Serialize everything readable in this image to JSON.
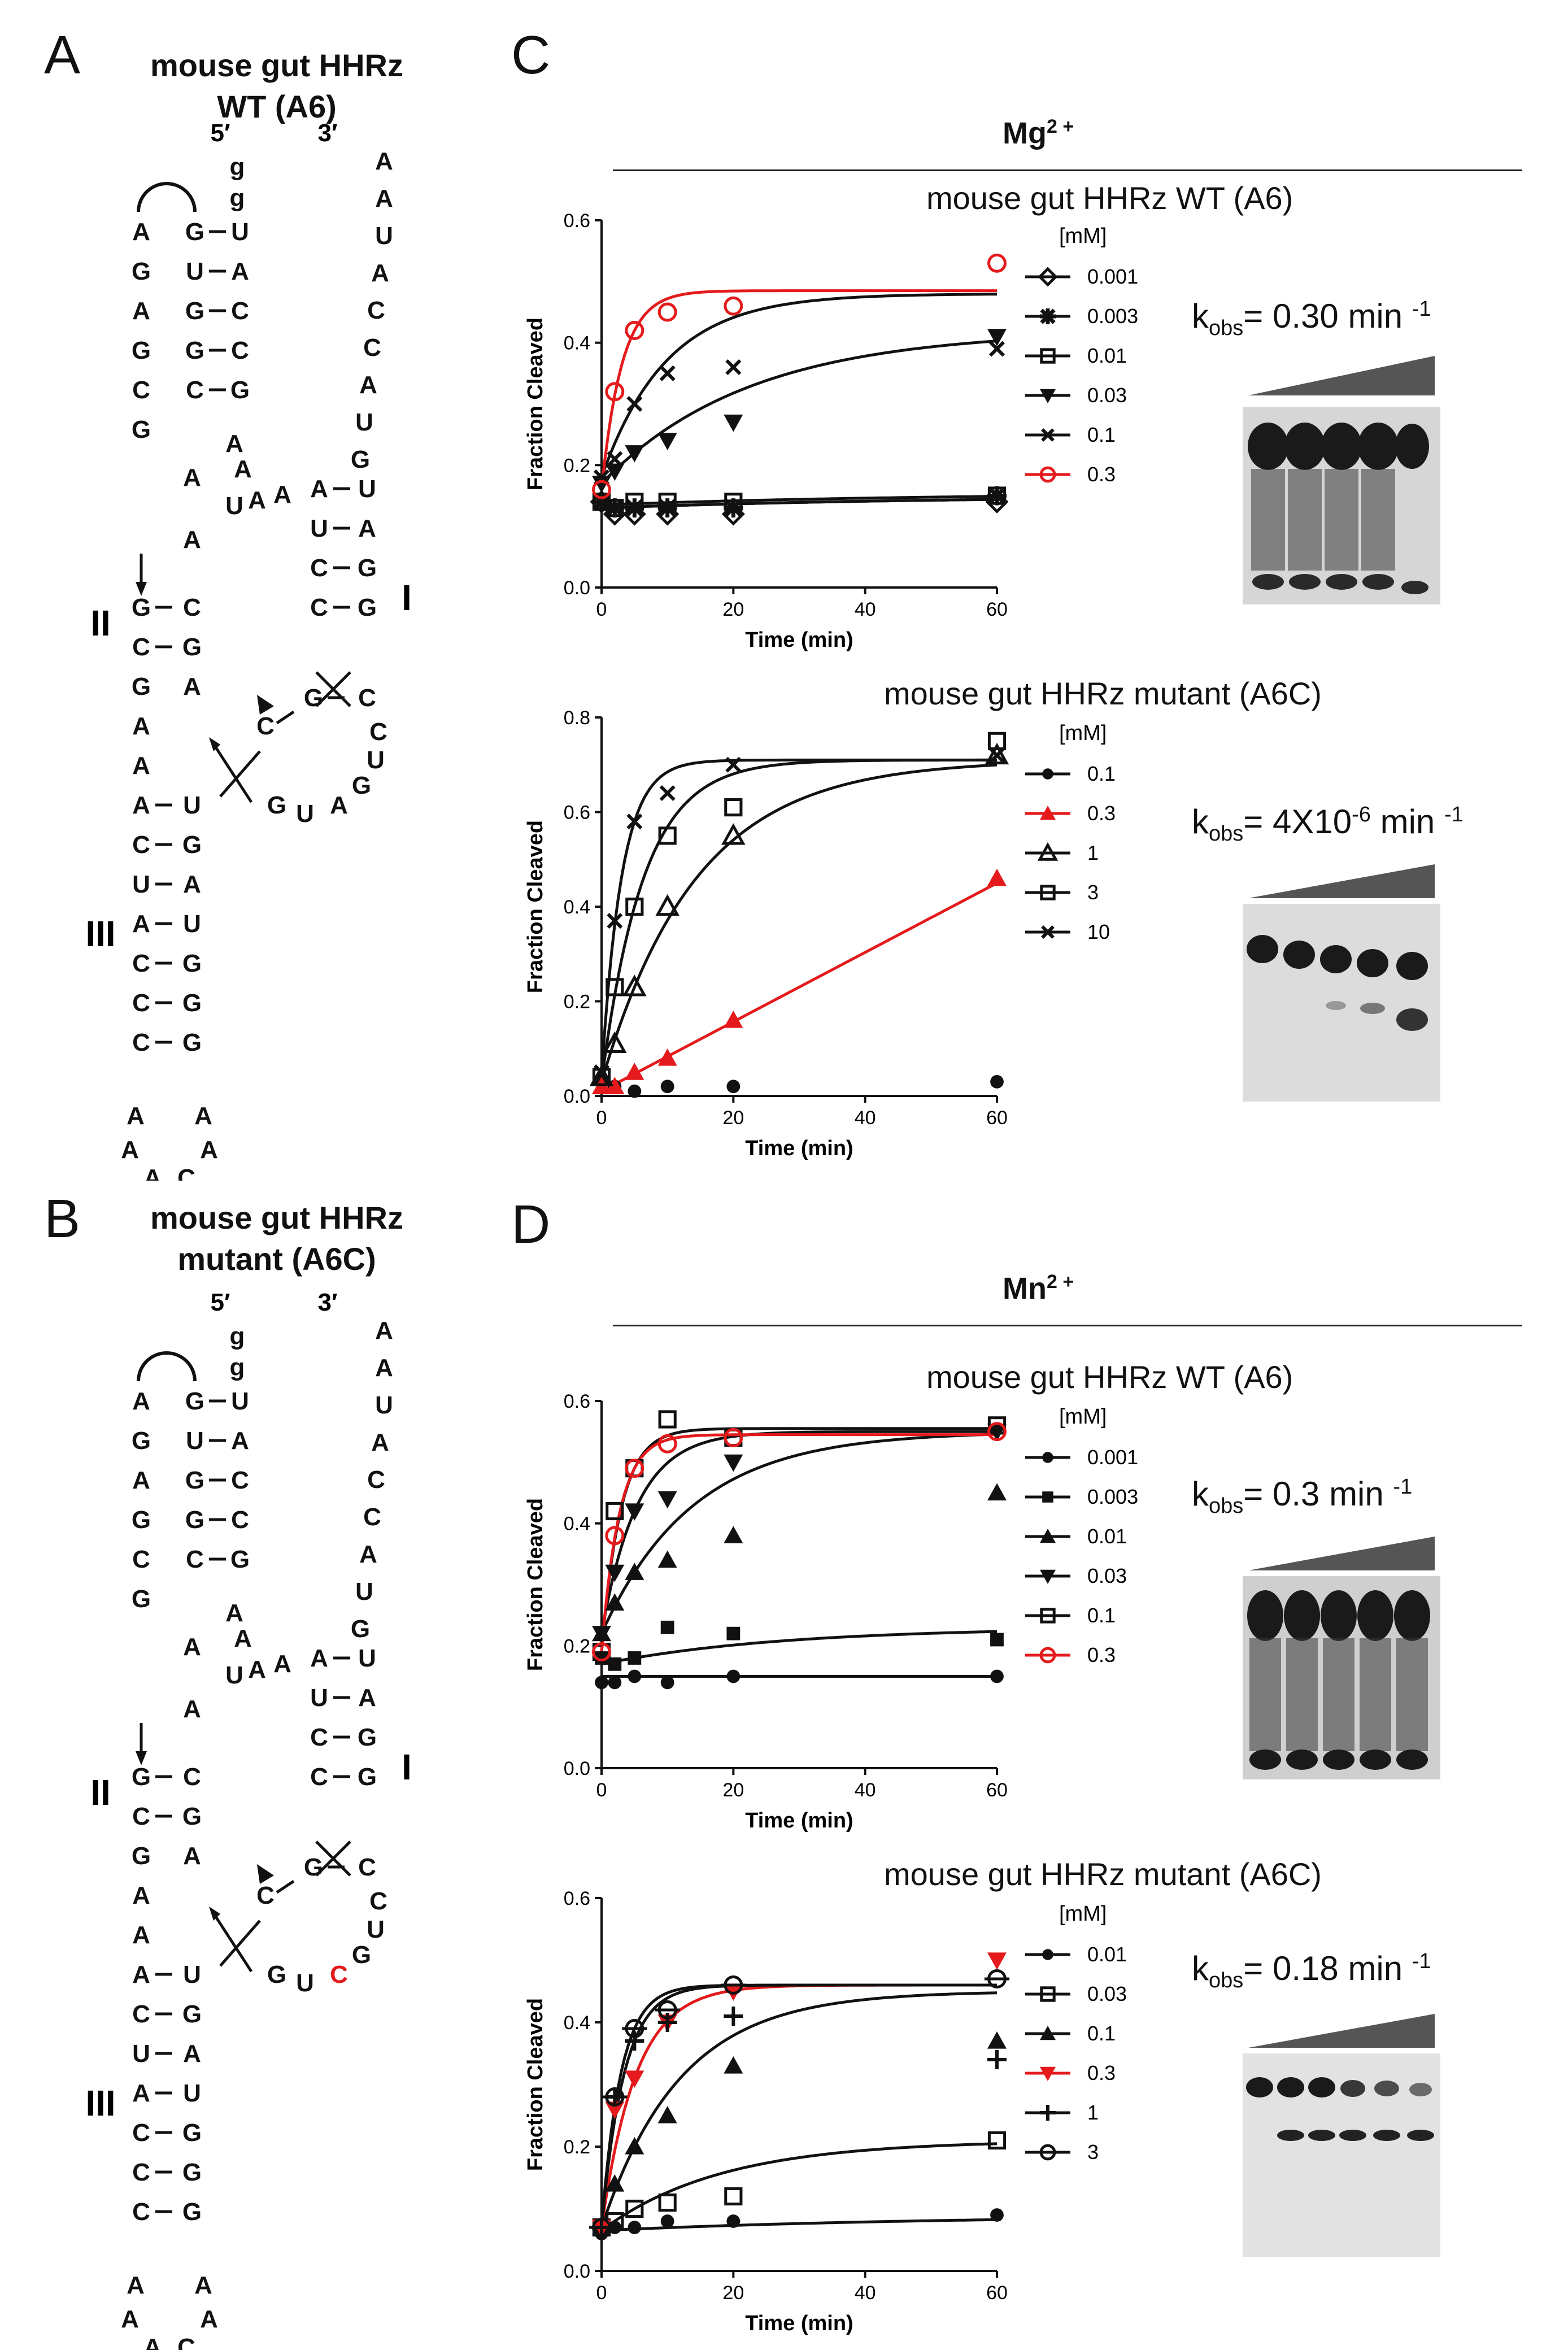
{
  "panels": {
    "A": {
      "letter": "A",
      "title_line1": "mouse gut HHRz",
      "title_line2": "WT (A6)"
    },
    "B": {
      "letter": "B",
      "title_line1": "mouse gut HHRz",
      "title_line2": "mutant (A6C)"
    },
    "C": {
      "letter": "C",
      "ion": "Mg",
      "ion_charge": "2 +"
    },
    "D": {
      "letter": "D",
      "ion": "Mn",
      "ion_charge": "2 +"
    }
  },
  "structure": {
    "five_prime": "5′",
    "three_prime": "3′",
    "stem_labels": [
      "II",
      "I",
      "III"
    ],
    "mutant_base": "C"
  },
  "kobs": [
    {
      "prefix": "k",
      "sub": "obs",
      "text": "= 0.30 min",
      "sup": "-1"
    },
    {
      "prefix": "k",
      "sub": "obs",
      "text": "= 4X10",
      "sup_mid": "-6",
      "text2": " min",
      "sup": "-1"
    },
    {
      "prefix": "k",
      "sub": "obs",
      "text": "= 0.3 min",
      "sup": "-1"
    },
    {
      "prefix": "k",
      "sub": "obs",
      "text": "= 0.18 min",
      "sup": "-1"
    }
  ],
  "chart_data": [
    {
      "type": "scatter",
      "title": "mouse gut HHRz WT (A6)",
      "xlabel": "Time (min)",
      "ylabel": "Fraction Cleaved",
      "xlim": [
        0,
        60
      ],
      "ylim": [
        0,
        0.6
      ],
      "xticks": [
        "0",
        "20",
        "40",
        "60"
      ],
      "yticks": [
        "0.0",
        "0.2",
        "0.4",
        "0.6"
      ],
      "legend_title": "[mM]",
      "x": [
        0,
        2,
        5,
        10,
        20,
        60
      ],
      "series": [
        {
          "name": "0.001",
          "marker": "diamond-open",
          "color": "#111111",
          "values": [
            0.14,
            0.12,
            0.12,
            0.12,
            0.12,
            0.14
          ],
          "fit": [
            0.13,
            0.15
          ]
        },
        {
          "name": "0.003",
          "marker": "asterisk-filled",
          "color": "#111111",
          "values": [
            0.14,
            0.13,
            0.13,
            0.13,
            0.13,
            0.15
          ],
          "fit": [
            0.13,
            0.15
          ]
        },
        {
          "name": "0.01",
          "marker": "square-open",
          "color": "#111111",
          "values": [
            0.14,
            0.13,
            0.14,
            0.14,
            0.14,
            0.15
          ],
          "fit": [
            0.135,
            0.155
          ]
        },
        {
          "name": "0.03",
          "marker": "triangle-down",
          "color": "#111111",
          "values": [
            0.17,
            0.19,
            0.22,
            0.24,
            0.27,
            0.41
          ],
          "fit": [
            0.17,
            0.42
          ]
        },
        {
          "name": "0.1",
          "marker": "x",
          "color": "#111111",
          "values": [
            0.18,
            0.21,
            0.3,
            0.35,
            0.36,
            0.39
          ],
          "fit": [
            0.18,
            0.48
          ]
        },
        {
          "name": "0.3",
          "marker": "circle-open",
          "color": "#e41a1c",
          "values": [
            0.16,
            0.32,
            0.42,
            0.45,
            0.46,
            0.53
          ],
          "fit": [
            0.16,
            0.485
          ]
        }
      ]
    },
    {
      "type": "scatter",
      "title": "mouse gut HHRz mutant (A6C)",
      "xlabel": "Time (min)",
      "ylabel": "Fraction Cleaved",
      "xlim": [
        0,
        60
      ],
      "ylim": [
        0,
        0.8
      ],
      "xticks": [
        "0",
        "20",
        "40",
        "60"
      ],
      "yticks": [
        "0.0",
        "0.2",
        "0.4",
        "0.6",
        "0.8"
      ],
      "legend_title": "[mM]",
      "x": [
        0,
        2,
        5,
        10,
        20,
        60
      ],
      "series": [
        {
          "name": "0.1",
          "marker": "circle-filled",
          "color": "#111111",
          "values": [
            0.03,
            0.02,
            0.01,
            0.02,
            0.02,
            0.03
          ],
          "fit": null
        },
        {
          "name": "0.3",
          "marker": "triangle-filled",
          "color": "#e41a1c",
          "values": [
            0.02,
            0.02,
            0.05,
            0.08,
            0.16,
            0.46
          ],
          "fit": [
            0.01,
            0.45
          ]
        },
        {
          "name": "1",
          "marker": "triangle-open",
          "color": "#111111",
          "values": [
            0.04,
            0.11,
            0.23,
            0.4,
            0.55,
            0.72
          ],
          "fit": [
            0.03,
            0.71
          ]
        },
        {
          "name": "3",
          "marker": "square-open",
          "color": "#111111",
          "values": [
            0.04,
            0.23,
            0.4,
            0.55,
            0.61,
            0.75
          ],
          "fit": [
            0.03,
            0.71
          ]
        },
        {
          "name": "10",
          "marker": "x",
          "color": "#111111",
          "values": [
            0.05,
            0.37,
            0.58,
            0.64,
            0.7,
            0.72
          ],
          "fit": [
            0.04,
            0.71
          ]
        }
      ]
    },
    {
      "type": "scatter",
      "title": "mouse gut HHRz WT (A6)",
      "xlabel": "Time (min)",
      "ylabel": "Fraction Cleaved",
      "xlim": [
        0,
        60
      ],
      "ylim": [
        0,
        0.6
      ],
      "xticks": [
        "0",
        "20",
        "40",
        "60"
      ],
      "yticks": [
        "0.0",
        "0.2",
        "0.4",
        "0.6"
      ],
      "legend_title": "[mM]",
      "x": [
        0,
        2,
        5,
        10,
        20,
        60
      ],
      "series": [
        {
          "name": "0.001",
          "marker": "circle-filled",
          "color": "#111111",
          "values": [
            0.14,
            0.14,
            0.15,
            0.14,
            0.15,
            0.15
          ],
          "fit": [
            0.15,
            0.15
          ]
        },
        {
          "name": "0.003",
          "marker": "square-filled",
          "color": "#111111",
          "values": [
            0.18,
            0.17,
            0.18,
            0.23,
            0.22,
            0.21
          ],
          "fit": [
            0.17,
            0.23
          ]
        },
        {
          "name": "0.01",
          "marker": "triangle-filled",
          "color": "#111111",
          "values": [
            0.22,
            0.27,
            0.32,
            0.34,
            0.38,
            0.45
          ],
          "fit": [
            0.22,
            0.55
          ]
        },
        {
          "name": "0.03",
          "marker": "triangle-down",
          "color": "#111111",
          "values": [
            0.22,
            0.32,
            0.42,
            0.44,
            0.5,
            0.55
          ],
          "fit": [
            0.22,
            0.55
          ]
        },
        {
          "name": "0.1",
          "marker": "square-open",
          "color": "#111111",
          "values": [
            0.19,
            0.42,
            0.49,
            0.57,
            0.54,
            0.56
          ],
          "fit": [
            0.19,
            0.555
          ]
        },
        {
          "name": "0.3",
          "marker": "circle-open",
          "color": "#e41a1c",
          "values": [
            0.19,
            0.38,
            0.49,
            0.53,
            0.54,
            0.55
          ],
          "fit": [
            0.19,
            0.545
          ]
        }
      ]
    },
    {
      "type": "scatter",
      "title": "mouse gut HHRz mutant (A6C)",
      "xlabel": "Time (min)",
      "ylabel": "Fraction Cleaved",
      "xlim": [
        0,
        60
      ],
      "ylim": [
        0,
        0.6
      ],
      "xticks": [
        "0",
        "20",
        "40",
        "60"
      ],
      "yticks": [
        "0.0",
        "0.2",
        "0.4",
        "0.6"
      ],
      "legend_title": "[mM]",
      "x": [
        0,
        2,
        5,
        10,
        20,
        60
      ],
      "series": [
        {
          "name": "0.01",
          "marker": "circle-filled",
          "color": "#111111",
          "values": [
            0.06,
            0.07,
            0.07,
            0.08,
            0.08,
            0.09
          ],
          "fit": [
            0.065,
            0.09
          ]
        },
        {
          "name": "0.03",
          "marker": "square-open",
          "color": "#111111",
          "values": [
            0.07,
            0.08,
            0.1,
            0.11,
            0.12,
            0.21
          ],
          "fit": [
            0.065,
            0.21
          ]
        },
        {
          "name": "0.1",
          "marker": "triangle-filled",
          "color": "#111111",
          "values": [
            0.07,
            0.14,
            0.2,
            0.25,
            0.33,
            0.37
          ],
          "fit": [
            0.07,
            0.45
          ]
        },
        {
          "name": "0.3",
          "marker": "triangle-down",
          "color": "#e41a1c",
          "values": [
            0.07,
            0.26,
            0.31,
            0.4,
            0.45,
            0.5
          ],
          "fit": [
            0.07,
            0.46
          ]
        },
        {
          "name": "1",
          "marker": "plus",
          "color": "#111111",
          "values": [
            0.07,
            0.28,
            0.37,
            0.4,
            0.41,
            0.34
          ],
          "fit": [
            0.07,
            0.46
          ]
        },
        {
          "name": "3",
          "marker": "circle-open-bar",
          "color": "#111111",
          "values": [
            0.07,
            0.28,
            0.39,
            0.42,
            0.46,
            0.47
          ],
          "fit": [
            0.07,
            0.46
          ]
        }
      ]
    }
  ]
}
